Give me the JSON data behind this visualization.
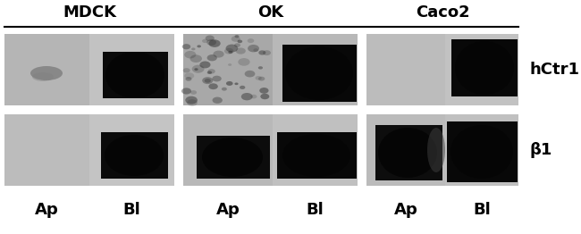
{
  "title_groups": [
    "MDCK",
    "OK",
    "Caco2"
  ],
  "row_labels": [
    "hCtr1",
    "β1"
  ],
  "col_labels_bottom": [
    "Ap",
    "Bl",
    "Ap",
    "Bl",
    "Ap",
    "Bl"
  ],
  "fig_width": 6.5,
  "fig_height": 2.62,
  "dpi": 100,
  "bg_color": "#ffffff",
  "text_color": "#000000"
}
